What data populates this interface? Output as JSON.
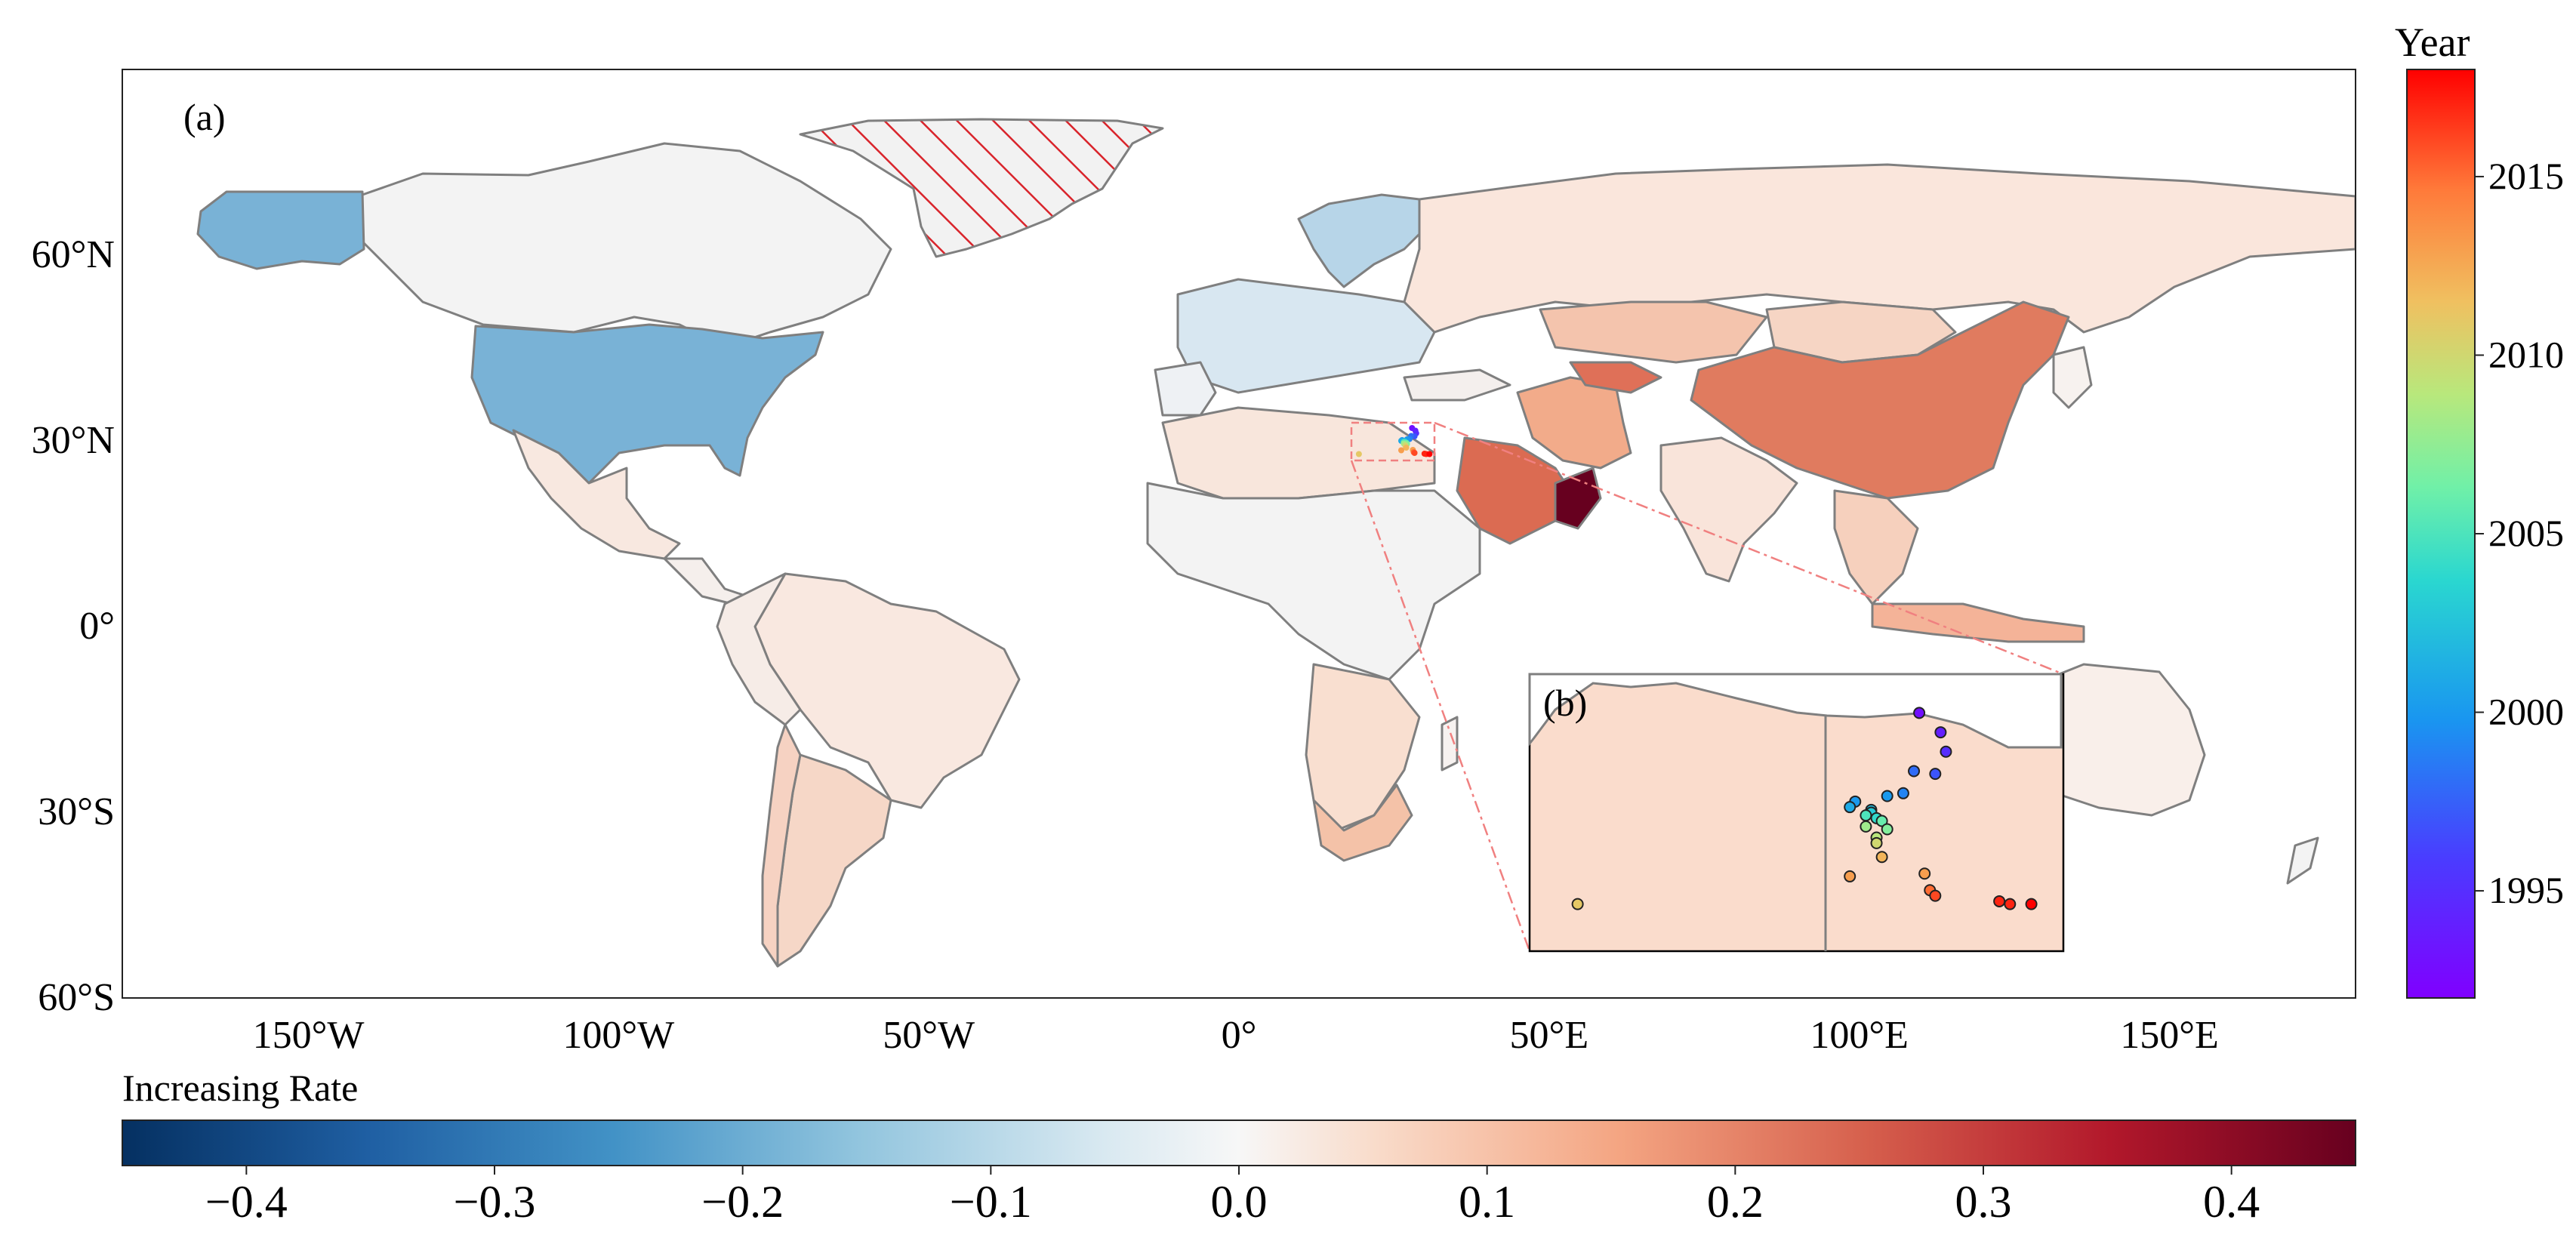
{
  "panel_a_label": "(a)",
  "panel_b_label": "(b)",
  "lat_labels": [
    "60°N",
    "30°N",
    "0°",
    "30°S",
    "60°S"
  ],
  "lon_labels": [
    "150°W",
    "100°W",
    "50°W",
    "0°",
    "50°E",
    "100°E",
    "150°E"
  ],
  "rate_colorbar": {
    "title": "Increasing Rate",
    "ticks": [
      "−0.4",
      "−0.3",
      "−0.2",
      "−0.1",
      "0.0",
      "0.1",
      "0.2",
      "0.3",
      "0.4"
    ],
    "range": [
      -0.45,
      0.45
    ],
    "colormap": "RdBu_r"
  },
  "year_colorbar": {
    "title": "Year",
    "ticks": [
      "2015",
      "2010",
      "2005",
      "2000",
      "1995"
    ],
    "range": [
      1992,
      2018
    ],
    "colormap": "rainbow"
  },
  "colors": {
    "coast": "#7f7f7f",
    "neutral": "#f4f4f4",
    "hatch": "#d9242b"
  },
  "chart_data": {
    "type": "choropleth-map",
    "projection": "PlateCarree",
    "extent_lon": [
      -180,
      180
    ],
    "extent_lat": [
      -60,
      90
    ],
    "grid": false,
    "values_by_region": [
      {
        "name": "USA",
        "value": -0.2
      },
      {
        "name": "Alaska",
        "value": -0.2
      },
      {
        "name": "Canada",
        "value": -0.01
      },
      {
        "name": "Greenland",
        "value": null,
        "hatched": true
      },
      {
        "name": "Mexico",
        "value": 0.04
      },
      {
        "name": "Brazil",
        "value": 0.04
      },
      {
        "name": "Argentina",
        "value": 0.07
      },
      {
        "name": "Chile",
        "value": 0.06
      },
      {
        "name": "Russia",
        "value": 0.05
      },
      {
        "name": "China",
        "value": 0.25
      },
      {
        "name": "Kazakhstan",
        "value": 0.12
      },
      {
        "name": "Iran",
        "value": 0.16
      },
      {
        "name": "Saudi Arabia",
        "value": 0.26
      },
      {
        "name": "Oman",
        "value": 0.45
      },
      {
        "name": "Scandinavia",
        "value": -0.14
      },
      {
        "name": "Europe",
        "value": -0.08
      },
      {
        "name": "South Africa",
        "value": 0.1
      },
      {
        "name": "Australia",
        "value": 0.01
      }
    ],
    "inset_points": [
      {
        "year": 1993,
        "x": 0.73,
        "y": 0.14
      },
      {
        "year": 1994,
        "x": 0.77,
        "y": 0.21
      },
      {
        "year": 1995,
        "x": 0.78,
        "y": 0.28
      },
      {
        "year": 1997,
        "x": 0.76,
        "y": 0.36
      },
      {
        "year": 1998,
        "x": 0.72,
        "y": 0.35
      },
      {
        "year": 1999,
        "x": 0.7,
        "y": 0.43
      },
      {
        "year": 2000,
        "x": 0.67,
        "y": 0.44
      },
      {
        "year": 2000,
        "x": 0.61,
        "y": 0.46
      },
      {
        "year": 2001,
        "x": 0.6,
        "y": 0.48
      },
      {
        "year": 2002,
        "x": 0.64,
        "y": 0.49
      },
      {
        "year": 2003,
        "x": 0.64,
        "y": 0.5
      },
      {
        "year": 2004,
        "x": 0.65,
        "y": 0.52
      },
      {
        "year": 2005,
        "x": 0.63,
        "y": 0.51
      },
      {
        "year": 2006,
        "x": 0.66,
        "y": 0.53
      },
      {
        "year": 2007,
        "x": 0.67,
        "y": 0.56
      },
      {
        "year": 2008,
        "x": 0.63,
        "y": 0.55
      },
      {
        "year": 2009,
        "x": 0.65,
        "y": 0.59
      },
      {
        "year": 2010,
        "x": 0.65,
        "y": 0.61
      },
      {
        "year": 2011,
        "x": 0.09,
        "y": 0.83
      },
      {
        "year": 2012,
        "x": 0.66,
        "y": 0.66
      },
      {
        "year": 2013,
        "x": 0.6,
        "y": 0.73
      },
      {
        "year": 2013,
        "x": 0.74,
        "y": 0.72
      },
      {
        "year": 2015,
        "x": 0.75,
        "y": 0.78
      },
      {
        "year": 2016,
        "x": 0.76,
        "y": 0.8
      },
      {
        "year": 2017,
        "x": 0.88,
        "y": 0.82
      },
      {
        "year": 2017,
        "x": 0.9,
        "y": 0.83
      },
      {
        "year": 2018,
        "x": 0.94,
        "y": 0.83
      }
    ]
  }
}
